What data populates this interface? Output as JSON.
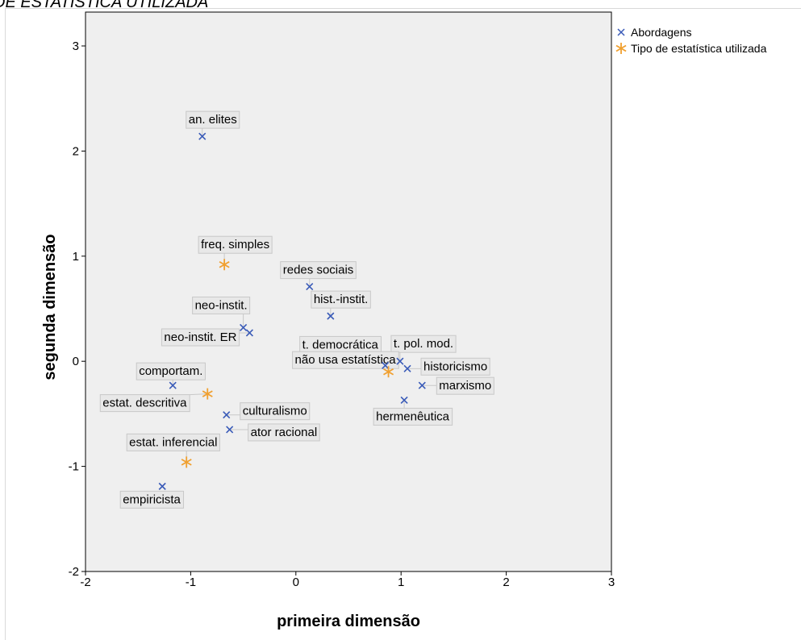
{
  "header": {
    "title": "DE ESTATÍSTICA UTILIZADA"
  },
  "colors": {
    "abordagens": "#3a5bb8",
    "estatistica": "#f0a030",
    "plot_bg": "#efefef",
    "label_bg": "#e8e8e8",
    "label_border": "#c8c8c8"
  },
  "chart_data": {
    "type": "scatter",
    "title": "",
    "xlabel": "primeira dimensão",
    "ylabel": "segunda dimensão",
    "xlim": [
      -2,
      3
    ],
    "ylim": [
      -2,
      3.3
    ],
    "xticks": [
      -2,
      -1,
      0,
      1,
      2,
      3
    ],
    "yticks": [
      -2,
      -1,
      0,
      1,
      2,
      3
    ],
    "grid": false,
    "legend_position": "top-right (outside plot)",
    "series": [
      {
        "name": "Abordagens",
        "marker": "x",
        "points": [
          {
            "label": "an. elites",
            "x": -0.89,
            "y": 2.14
          },
          {
            "label": "redes sociais",
            "x": 0.13,
            "y": 0.71
          },
          {
            "label": "hist.-instit.",
            "x": 0.33,
            "y": 0.43
          },
          {
            "label": "neo-instit.",
            "x": -0.5,
            "y": 0.32
          },
          {
            "label": "neo-instit. ER",
            "x": -0.44,
            "y": 0.27
          },
          {
            "label": "t. democrática",
            "x": 0.85,
            "y": -0.04
          },
          {
            "label": "t. pol. mod.",
            "x": 0.99,
            "y": 0.0
          },
          {
            "label": "historicismo",
            "x": 1.06,
            "y": -0.07
          },
          {
            "label": "marxismo",
            "x": 1.2,
            "y": -0.23
          },
          {
            "label": "hermenêutica",
            "x": 1.03,
            "y": -0.37
          },
          {
            "label": "comportam.",
            "x": -1.17,
            "y": -0.23
          },
          {
            "label": "culturalismo",
            "x": -0.66,
            "y": -0.51
          },
          {
            "label": "ator racional",
            "x": -0.63,
            "y": -0.65
          },
          {
            "label": "empiricista",
            "x": -1.27,
            "y": -1.19
          }
        ]
      },
      {
        "name": "Tipo de estatística utilizada",
        "marker": "star",
        "points": [
          {
            "label": "freq. simples",
            "x": -0.68,
            "y": 0.92
          },
          {
            "label": "não usa estatística",
            "x": 0.88,
            "y": -0.1
          },
          {
            "label": "estat. descritiva",
            "x": -0.84,
            "y": -0.31
          },
          {
            "label": "estat. inferencial",
            "x": -1.04,
            "y": -0.96
          }
        ]
      }
    ]
  }
}
